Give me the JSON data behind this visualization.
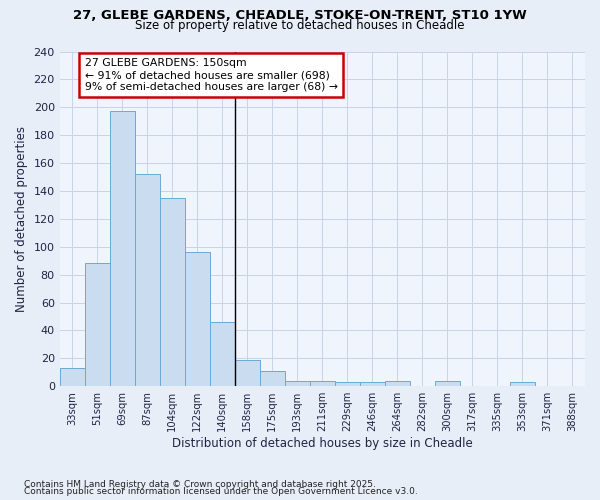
{
  "title1": "27, GLEBE GARDENS, CHEADLE, STOKE-ON-TRENT, ST10 1YW",
  "title2": "Size of property relative to detached houses in Cheadle",
  "xlabel": "Distribution of detached houses by size in Cheadle",
  "ylabel": "Number of detached properties",
  "categories": [
    "33sqm",
    "51sqm",
    "69sqm",
    "87sqm",
    "104sqm",
    "122sqm",
    "140sqm",
    "158sqm",
    "175sqm",
    "193sqm",
    "211sqm",
    "229sqm",
    "246sqm",
    "264sqm",
    "282sqm",
    "300sqm",
    "317sqm",
    "335sqm",
    "353sqm",
    "371sqm",
    "388sqm"
  ],
  "values": [
    13,
    88,
    197,
    152,
    135,
    96,
    46,
    19,
    11,
    4,
    4,
    3,
    3,
    4,
    0,
    4,
    0,
    0,
    3,
    0,
    0
  ],
  "bar_color": "#c9dcf0",
  "bar_edge_color": "#6aaad4",
  "annotation_label": "27 GLEBE GARDENS: 150sqm",
  "annotation_line1": "← 91% of detached houses are smaller (698)",
  "annotation_line2": "9% of semi-detached houses are larger (68) →",
  "annotation_box_color": "#ffffff",
  "annotation_box_edge": "#cc0000",
  "ylim": [
    0,
    240
  ],
  "yticks": [
    0,
    20,
    40,
    60,
    80,
    100,
    120,
    140,
    160,
    180,
    200,
    220,
    240
  ],
  "footnote1": "Contains HM Land Registry data © Crown copyright and database right 2025.",
  "footnote2": "Contains public sector information licensed under the Open Government Licence v3.0.",
  "bg_color": "#e8eef8",
  "plot_bg_color": "#f0f4fc",
  "grid_color": "#c8d4e8"
}
